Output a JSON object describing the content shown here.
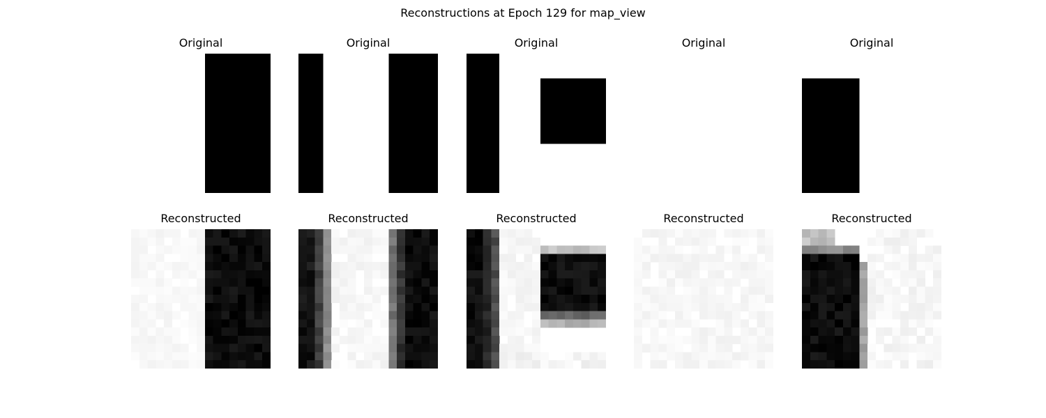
{
  "figure": {
    "title": "Reconstructions at Epoch 129 for map_view",
    "original_label": "Original",
    "reconstructed_label": "Reconstructed",
    "grid": 17,
    "colormap": "grayscale (1 = black, 0 = white)"
  },
  "originals": [
    {
      "rects": [
        [
          9,
          0,
          8,
          17
        ]
      ]
    },
    {
      "rects": [
        [
          0,
          0,
          3,
          17
        ],
        [
          11,
          0,
          6,
          17
        ]
      ]
    },
    {
      "rects": [
        [
          0,
          0,
          4,
          17
        ],
        [
          9,
          3,
          8,
          8
        ]
      ]
    },
    {
      "rects": []
    },
    {
      "rects": [
        [
          0,
          3,
          7,
          14
        ]
      ]
    }
  ],
  "reconstructions": [
    {
      "dark": [
        [
          9,
          0,
          8,
          17,
          0.95
        ]
      ],
      "noise": [
        [
          0,
          0,
          9,
          17,
          0.05
        ]
      ]
    },
    {
      "dark": [
        [
          0,
          0,
          2,
          17,
          0.92
        ],
        [
          2,
          0,
          1,
          17,
          0.75
        ],
        [
          3,
          0,
          1,
          17,
          0.45
        ],
        [
          11,
          0,
          1,
          17,
          0.55
        ],
        [
          12,
          0,
          1,
          17,
          0.8
        ],
        [
          13,
          0,
          4,
          17,
          0.95
        ]
      ],
      "noise": [
        [
          4,
          0,
          7,
          17,
          0.06
        ]
      ]
    },
    {
      "dark": [
        [
          0,
          0,
          2,
          17,
          0.95
        ],
        [
          2,
          0,
          1,
          17,
          0.85
        ],
        [
          3,
          0,
          1,
          17,
          0.7
        ],
        [
          9,
          2,
          8,
          1,
          0.25
        ],
        [
          9,
          3,
          8,
          8,
          0.95
        ],
        [
          9,
          10,
          8,
          1,
          0.6
        ],
        [
          9,
          11,
          8,
          1,
          0.3
        ]
      ],
      "noise": [
        [
          4,
          0,
          5,
          17,
          0.06
        ],
        [
          4,
          15,
          13,
          2,
          0.08
        ]
      ]
    },
    {
      "dark": [],
      "noise": [
        [
          0,
          0,
          17,
          17,
          0.06
        ]
      ]
    },
    {
      "dark": [
        [
          0,
          0,
          4,
          2,
          0.25
        ],
        [
          0,
          2,
          7,
          1,
          0.45
        ],
        [
          0,
          3,
          7,
          14,
          0.95
        ],
        [
          7,
          4,
          1,
          13,
          0.35
        ]
      ],
      "noise": [
        [
          8,
          0,
          9,
          17,
          0.07
        ]
      ]
    }
  ]
}
